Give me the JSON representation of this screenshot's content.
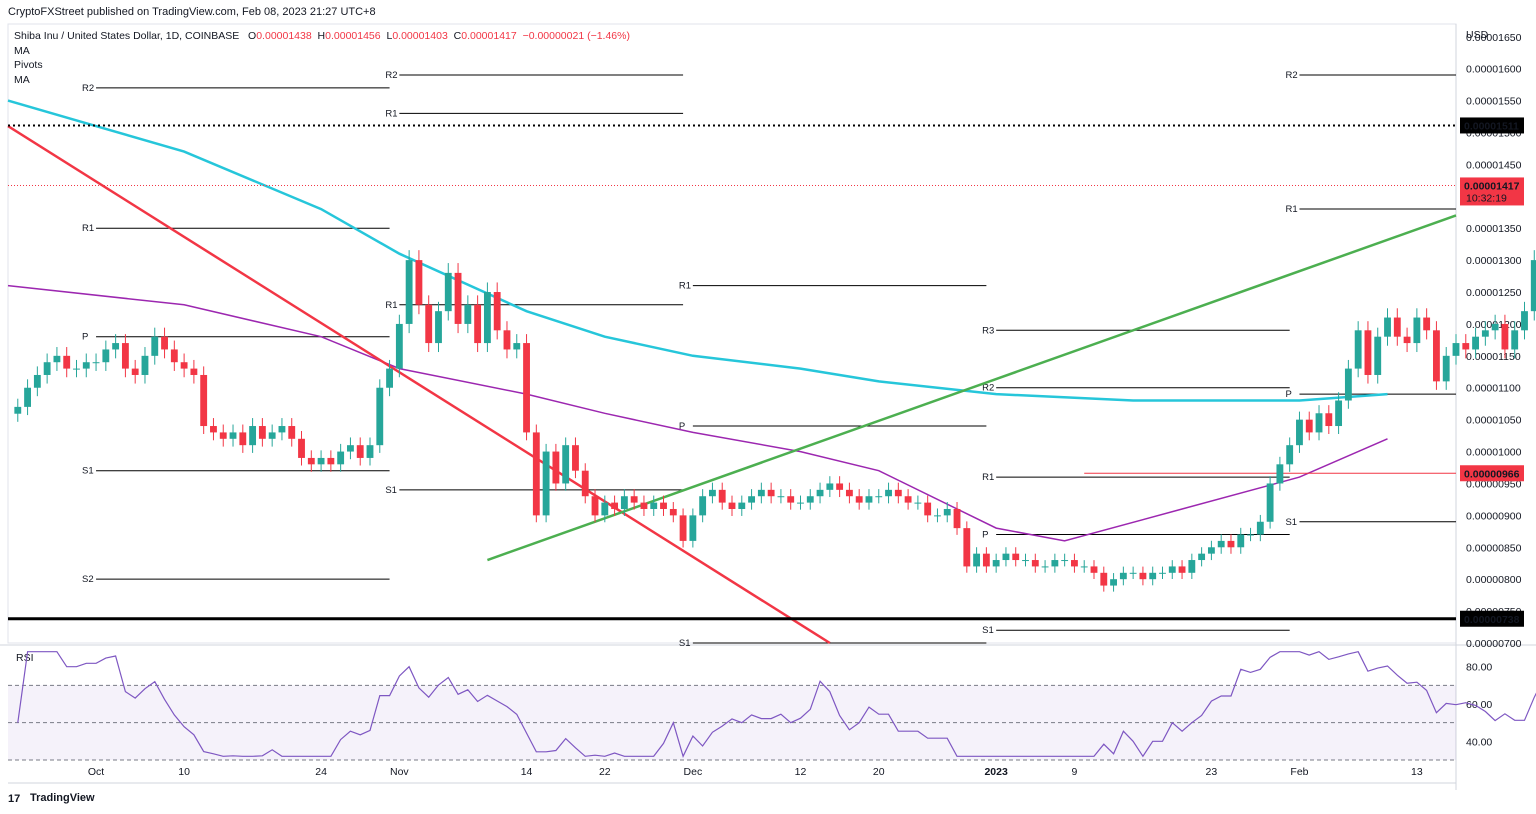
{
  "header": {
    "published": "CryptoFXStreet published on TradingView.com, Feb 08, 2023 21:27 UTC+8"
  },
  "legend": {
    "symbol": "Shiba Inu / United States Dollar, 1D, COINBASE",
    "o_label": "O",
    "o": "0.00001438",
    "h_label": "H",
    "h": "0.00001456",
    "l_label": "L",
    "l": "0.00001403",
    "c_label": "C",
    "c": "0.00001417",
    "change": "−0.00000021 (−1.46%)",
    "indicators": [
      "MA",
      "Pivots",
      "MA"
    ]
  },
  "footer": {
    "brand": "TradingView",
    "logo_text": "17"
  },
  "colors": {
    "up": "#26a69a",
    "down": "#f23645",
    "ma_fast": "#26c6da",
    "ma_slow": "#9c27b0",
    "trend_up": "#4caf50",
    "trend_down": "#f23645",
    "rsi": "#7e57c2",
    "pivot": "#000000"
  },
  "chart_data": [
    {
      "type": "candlestick",
      "title": "Shiba Inu / United States Dollar, 1D, COINBASE",
      "ylabel": "USD",
      "ylim": [
        7e-06,
        1.67e-05
      ],
      "yticks": [
        "0.00001650",
        "0.00001600",
        "0.00001550",
        "0.00001500",
        "0.00001450",
        "0.00001400",
        "0.00001350",
        "0.00001300",
        "0.00001250",
        "0.00001200",
        "0.00001150",
        "0.00001100",
        "0.00001050",
        "0.00001000",
        "0.00000950",
        "0.00000900",
        "0.00000850",
        "0.00000800",
        "0.00000750",
        "0.00000700"
      ],
      "xticks": [
        "Oct",
        "10",
        "24",
        "Nov",
        "14",
        "22",
        "Dec",
        "12",
        "20",
        "2023",
        "9",
        "23",
        "Feb",
        "13"
      ],
      "xtick_dates": [
        "2022-10-01",
        "2022-10-10",
        "2022-10-24",
        "2022-11-01",
        "2022-11-14",
        "2022-11-22",
        "2022-12-01",
        "2022-12-12",
        "2022-12-20",
        "2023-01-01",
        "2023-01-09",
        "2023-01-23",
        "2023-02-01",
        "2023-02-13"
      ],
      "date_range": [
        "2022-09-22",
        "2023-02-17"
      ],
      "first_candle_date": "2022-09-23",
      "close_series": [
        1.07e-05,
        1.1e-05,
        1.12e-05,
        1.14e-05,
        1.15e-05,
        1.13e-05,
        1.13e-05,
        1.14e-05,
        1.14e-05,
        1.16e-05,
        1.17e-05,
        1.13e-05,
        1.12e-05,
        1.15e-05,
        1.18e-05,
        1.16e-05,
        1.14e-05,
        1.13e-05,
        1.12e-05,
        1.04e-05,
        1.03e-05,
        1.02e-05,
        1.03e-05,
        1.01e-05,
        1.04e-05,
        1.02e-05,
        1.03e-05,
        1.04e-05,
        1.02e-05,
        9.9e-06,
        9.8e-06,
        9.9e-06,
        9.8e-06,
        1e-05,
        1.01e-05,
        9.9e-06,
        1.01e-05,
        1.1e-05,
        1.13e-05,
        1.2e-05,
        1.3e-05,
        1.23e-05,
        1.17e-05,
        1.22e-05,
        1.28e-05,
        1.2e-05,
        1.23e-05,
        1.17e-05,
        1.25e-05,
        1.19e-05,
        1.16e-05,
        1.17e-05,
        1.03e-05,
        9e-06,
        1e-05,
        9.5e-06,
        1.01e-05,
        9.7e-06,
        9.3e-06,
        9e-06,
        9.2e-06,
        9.1e-06,
        9.3e-06,
        9.2e-06,
        9.1e-06,
        9.2e-06,
        9.1e-06,
        9e-06,
        8.6e-06,
        9e-06,
        9.3e-06,
        9.4e-06,
        9.2e-06,
        9.1e-06,
        9.2e-06,
        9.3e-06,
        9.4e-06,
        9.3e-06,
        9.3e-06,
        9.2e-06,
        9.2e-06,
        9.3e-06,
        9.4e-06,
        9.5e-06,
        9.4e-06,
        9.3e-06,
        9.2e-06,
        9.3e-06,
        9.3e-06,
        9.4e-06,
        9.3e-06,
        9.2e-06,
        9.2e-06,
        9e-06,
        9e-06,
        9.1e-06,
        8.8e-06,
        8.2e-06,
        8.4e-06,
        8.2e-06,
        8.3e-06,
        8.4e-06,
        8.3e-06,
        8.3e-06,
        8.2e-06,
        8.2e-06,
        8.3e-06,
        8.3e-06,
        8.2e-06,
        8.2e-06,
        8.1e-06,
        7.9e-06,
        8e-06,
        8.1e-06,
        8.1e-06,
        8e-06,
        8.1e-06,
        8.1e-06,
        8.2e-06,
        8.1e-06,
        8.3e-06,
        8.4e-06,
        8.5e-06,
        8.6e-06,
        8.5e-06,
        8.7e-06,
        8.7e-06,
        8.9e-06,
        9.5e-06,
        9.8e-06,
        1.01e-05,
        1.05e-05,
        1.03e-05,
        1.06e-05,
        1.04e-05,
        1.08e-05,
        1.13e-05,
        1.19e-05,
        1.12e-05,
        1.18e-05,
        1.21e-05,
        1.18e-05,
        1.17e-05,
        1.21e-05,
        1.19e-05,
        1.11e-05,
        1.15e-05,
        1.17e-05,
        1.16e-05,
        1.18e-05,
        1.19e-05,
        1.2e-05,
        1.16e-05,
        1.19e-05,
        1.22e-05,
        1.3e-05,
        1.45e-05,
        1.4e-05,
        1.37e-05,
        1.42e-05,
        1.45e-05,
        1.42e-05
      ],
      "last_candle": {
        "open": 1.438e-05,
        "high": 1.456e-05,
        "low": 1.403e-05,
        "close": 1.417e-05
      },
      "ma_100_approx": "cyan curve from 0.0000155 (Sep) falling to 0.0000109 (Jan), flat to 0.0000109 (Feb)",
      "ma_200_approx": "purple curve from 0.0000126 (Sep) falling to 0.0000086 (Jan 8), rising to 0.0000102 (Feb 6)",
      "horizontal_levels": [
        {
          "label": "0.00001511",
          "value": 1.511e-05,
          "style": "dotted"
        },
        {
          "label": "0.00000966",
          "value": 9.66e-06,
          "style": "solid",
          "color": "#f23645"
        },
        {
          "label": "0.00000738",
          "value": 7.38e-06,
          "style": "solid-thick"
        }
      ],
      "current_price": {
        "label": "0.00001417",
        "countdown": "10:32:19"
      },
      "pivot_levels": [
        {
          "label": "R2",
          "value": 1.57e-05,
          "period": "Oct"
        },
        {
          "label": "R1",
          "value": 1.35e-05,
          "period": "Oct"
        },
        {
          "label": "P",
          "value": 1.18e-05,
          "period": "Oct"
        },
        {
          "label": "S1",
          "value": 9.7e-06,
          "period": "Oct"
        },
        {
          "label": "S2",
          "value": 8e-06,
          "period": "Oct"
        },
        {
          "label": "R2",
          "value": 1.59e-05,
          "period": "Nov"
        },
        {
          "label": "R1",
          "value": 1.53e-05,
          "period": "Nov"
        },
        {
          "label": "R1",
          "value": 1.23e-05,
          "period": "Nov"
        },
        {
          "label": "S1",
          "value": 9.4e-06,
          "period": "Nov"
        },
        {
          "label": "R1",
          "value": 1.26e-05,
          "period": "Dec"
        },
        {
          "label": "P",
          "value": 1.04e-05,
          "period": "Dec"
        },
        {
          "label": "S1",
          "value": 7e-06,
          "period": "Dec"
        },
        {
          "label": "R3",
          "value": 1.19e-05,
          "period": "Jan"
        },
        {
          "label": "R2",
          "value": 1.1e-05,
          "period": "Jan"
        },
        {
          "label": "R1",
          "value": 9.6e-06,
          "period": "Jan"
        },
        {
          "label": "P",
          "value": 8.7e-06,
          "period": "Jan"
        },
        {
          "label": "S1",
          "value": 7.2e-06,
          "period": "Jan"
        },
        {
          "label": "R2",
          "value": 1.59e-05,
          "period": "Feb"
        },
        {
          "label": "R1",
          "value": 1.38e-05,
          "period": "Feb"
        },
        {
          "label": "P",
          "value": 1.09e-05,
          "period": "Feb"
        },
        {
          "label": "S1",
          "value": 8.9e-06,
          "period": "Feb"
        }
      ]
    },
    {
      "type": "line",
      "title": "RSI",
      "ylim": [
        30,
        90
      ],
      "yticks": [
        "80.00",
        "60.00",
        "40.00"
      ],
      "bands": [
        70,
        50,
        30
      ],
      "rsi_approx": "oscillates 38–73 Sep–Dec, lows near 32 mid-Dec, rises to 86 in Jan, dips to 61, peaks 82 early Feb, ends 71"
    }
  ]
}
